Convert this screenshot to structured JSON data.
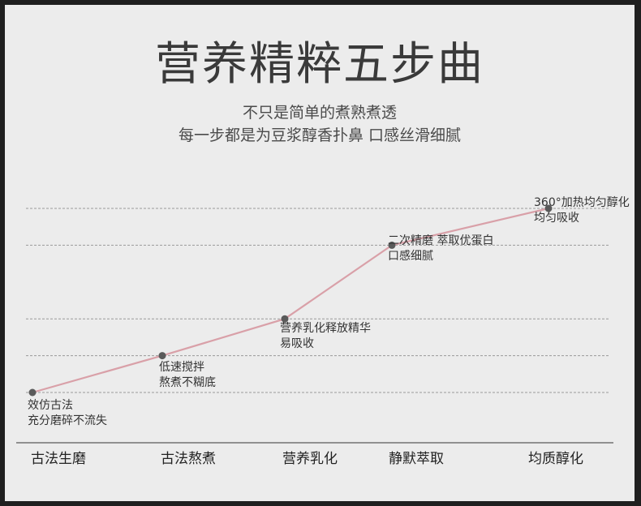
{
  "header": {
    "title": "营养精粹五步曲",
    "subtitle_line1": "不只是简单的煮熟煮透",
    "subtitle_line2": "每一步都是为豆浆醇香扑鼻 口感丝滑细腻"
  },
  "chart_data": {
    "type": "line",
    "title": "营养精粹五步曲",
    "categories": [
      "古法生磨",
      "古法熬煮",
      "营养乳化",
      "静默萃取",
      "均质醇化"
    ],
    "series": [
      {
        "values": [
          0,
          1,
          2,
          4,
          5
        ]
      }
    ],
    "annotations": [
      {
        "line1": "效仿古法",
        "line2": "充分磨碎不流失"
      },
      {
        "line1": "低速搅拌",
        "line2": "熬煮不糊底"
      },
      {
        "line1": "营养乳化释放精华",
        "line2": "易吸收"
      },
      {
        "line1": "二次精磨 萃取优蛋白",
        "line2": "口感细腻"
      },
      {
        "line1": "360°加热均匀醇化",
        "line2": "均匀吸收"
      }
    ],
    "grid": true,
    "colors": {
      "line": "#d9a0a8",
      "point": "#5a5a5a",
      "grid": "#9a9a9a"
    }
  }
}
